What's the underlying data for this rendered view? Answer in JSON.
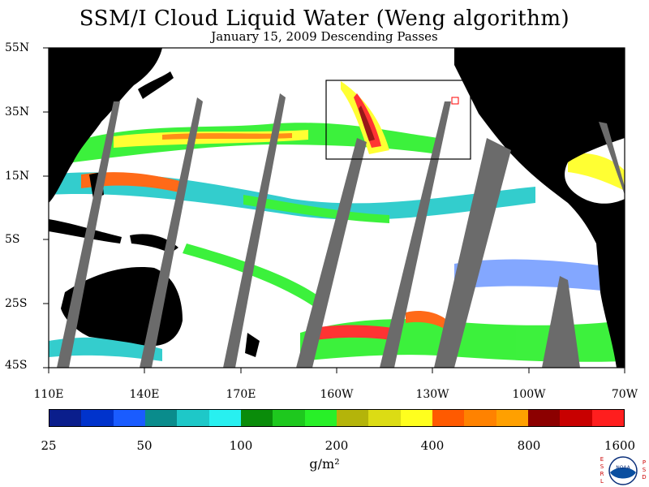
{
  "header": {
    "title": "SSM/I Cloud Liquid Water (Weng algorithm)",
    "subtitle": "January 15, 2009  Descending Passes"
  },
  "map": {
    "lat_labels": [
      "55N",
      "35N",
      "15N",
      "5S",
      "25S",
      "45S"
    ],
    "lon_labels": [
      "110E",
      "140E",
      "170E",
      "160W",
      "130W",
      "100W",
      "70W"
    ],
    "colors": {
      "land": "#000000",
      "no_data": "#6b6b6b",
      "ocean_clear": "#ffffff",
      "highlight_box": "#000000",
      "small_box": "#ff0000"
    }
  },
  "colorbar": {
    "units": "g/m²",
    "tick_labels": [
      "25",
      "50",
      "100",
      "200",
      "400",
      "800",
      "1600"
    ],
    "colors": [
      "#0a1e8c",
      "#0033cc",
      "#1a5cff",
      "#0a8c8c",
      "#1ec8c8",
      "#28f0f0",
      "#0a8c0a",
      "#1ec81e",
      "#28f028",
      "#b4b40a",
      "#dcdc14",
      "#ffff1e",
      "#ff5a00",
      "#ff8200",
      "#ffa000",
      "#8c0000",
      "#c80000",
      "#ff1e1e"
    ]
  },
  "logo": {
    "left_letters": "ESRL",
    "right_letters": "PSD",
    "emblem_text": "NOAA"
  }
}
